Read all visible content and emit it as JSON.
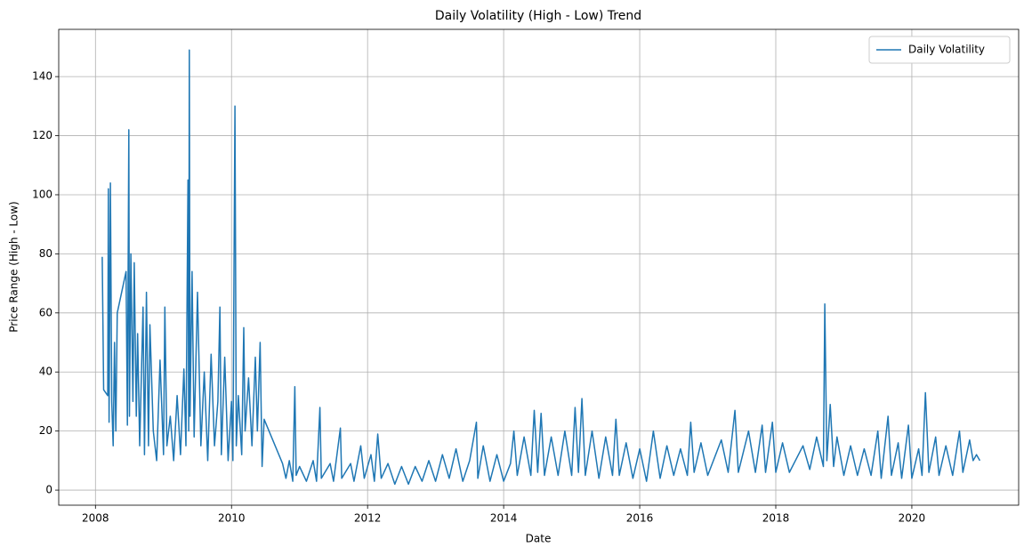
{
  "chart_data": {
    "type": "line",
    "title": "Daily Volatility (High - Low) Trend",
    "xlabel": "Date",
    "ylabel": "Price Range (High - Low)",
    "x": [
      2008.1,
      2008.12,
      2008.18,
      2008.19,
      2008.2,
      2008.22,
      2008.24,
      2008.26,
      2008.28,
      2008.3,
      2008.32,
      2008.45,
      2008.47,
      2008.49,
      2008.5,
      2008.52,
      2008.55,
      2008.57,
      2008.6,
      2008.62,
      2008.65,
      2008.7,
      2008.72,
      2008.75,
      2008.78,
      2008.8,
      2008.85,
      2008.9,
      2008.95,
      2009.0,
      2009.02,
      2009.05,
      2009.1,
      2009.15,
      2009.2,
      2009.25,
      2009.3,
      2009.33,
      2009.36,
      2009.37,
      2009.38,
      2009.39,
      2009.42,
      2009.45,
      2009.5,
      2009.55,
      2009.6,
      2009.65,
      2009.7,
      2009.75,
      2009.8,
      2009.83,
      2009.85,
      2009.9,
      2009.95,
      2010.0,
      2010.02,
      2010.05,
      2010.07,
      2010.1,
      2010.15,
      2010.18,
      2010.2,
      2010.25,
      2010.3,
      2010.35,
      2010.38,
      2010.42,
      2010.45,
      2010.48,
      2010.75,
      2010.8,
      2010.85,
      2010.9,
      2010.93,
      2010.95,
      2011.0,
      2011.1,
      2011.2,
      2011.25,
      2011.3,
      2011.32,
      2011.45,
      2011.5,
      2011.6,
      2011.62,
      2011.75,
      2011.8,
      2011.9,
      2011.95,
      2012.05,
      2012.1,
      2012.15,
      2012.2,
      2012.3,
      2012.4,
      2012.5,
      2012.6,
      2012.7,
      2012.8,
      2012.9,
      2013.0,
      2013.1,
      2013.2,
      2013.3,
      2013.4,
      2013.5,
      2013.6,
      2013.62,
      2013.7,
      2013.8,
      2013.9,
      2014.0,
      2014.1,
      2014.15,
      2014.2,
      2014.3,
      2014.4,
      2014.45,
      2014.5,
      2014.55,
      2014.6,
      2014.7,
      2014.8,
      2014.9,
      2015.0,
      2015.05,
      2015.1,
      2015.15,
      2015.2,
      2015.3,
      2015.4,
      2015.5,
      2015.6,
      2015.65,
      2015.7,
      2015.8,
      2015.9,
      2016.0,
      2016.1,
      2016.2,
      2016.3,
      2016.4,
      2016.5,
      2016.6,
      2016.7,
      2016.75,
      2016.8,
      2016.9,
      2017.0,
      2017.2,
      2017.3,
      2017.4,
      2017.45,
      2017.6,
      2017.7,
      2017.8,
      2017.85,
      2017.95,
      2018.0,
      2018.1,
      2018.2,
      2018.4,
      2018.5,
      2018.6,
      2018.7,
      2018.72,
      2018.75,
      2018.8,
      2018.85,
      2018.9,
      2019.0,
      2019.1,
      2019.2,
      2019.3,
      2019.4,
      2019.5,
      2019.55,
      2019.65,
      2019.7,
      2019.8,
      2019.85,
      2019.95,
      2020.0,
      2020.1,
      2020.15,
      2020.2,
      2020.25,
      2020.35,
      2020.4,
      2020.5,
      2020.6,
      2020.7,
      2020.75,
      2020.85,
      2020.9,
      2020.95,
      2021.0
    ],
    "series": [
      {
        "name": "Daily Volatility",
        "color": "#1f77b4",
        "values": [
          79,
          34,
          32,
          102,
          23,
          104,
          30,
          15,
          50,
          20,
          60,
          74,
          22,
          122,
          25,
          80,
          30,
          77,
          25,
          53,
          15,
          62,
          12,
          67,
          15,
          56,
          20,
          10,
          44,
          12,
          62,
          15,
          25,
          10,
          32,
          12,
          41,
          15,
          105,
          20,
          149,
          25,
          74,
          18,
          67,
          15,
          40,
          10,
          46,
          15,
          30,
          62,
          12,
          45,
          10,
          30,
          10,
          130,
          15,
          32,
          12,
          55,
          20,
          38,
          15,
          45,
          20,
          50,
          8,
          24,
          9,
          4,
          10,
          3,
          35,
          5,
          8,
          3,
          10,
          3,
          28,
          4,
          9,
          3,
          21,
          4,
          9,
          3,
          15,
          4,
          12,
          3,
          19,
          4,
          9,
          2,
          8,
          2,
          8,
          3,
          10,
          3,
          12,
          4,
          14,
          3,
          10,
          23,
          4,
          15,
          3,
          12,
          3,
          9,
          20,
          5,
          18,
          5,
          27,
          6,
          26,
          5,
          18,
          5,
          20,
          5,
          28,
          6,
          31,
          5,
          20,
          4,
          18,
          5,
          24,
          5,
          16,
          4,
          14,
          3,
          20,
          4,
          15,
          5,
          14,
          5,
          23,
          6,
          16,
          5,
          17,
          6,
          27,
          6,
          20,
          6,
          22,
          6,
          23,
          6,
          16,
          6,
          15,
          7,
          18,
          8,
          63,
          10,
          29,
          8,
          18,
          5,
          15,
          5,
          14,
          5,
          20,
          4,
          25,
          5,
          16,
          4,
          22,
          4,
          14,
          5,
          33,
          6,
          18,
          5,
          15,
          5,
          20,
          6,
          17,
          10,
          12,
          10
        ]
      }
    ],
    "xlim": [
      2007.46,
      2021.57
    ],
    "xticks": [
      2008,
      2010,
      2012,
      2014,
      2016,
      2018,
      2020
    ],
    "ylim": [
      -5.1,
      156
    ],
    "yticks": [
      0,
      20,
      40,
      60,
      80,
      100,
      120,
      140
    ],
    "grid": true,
    "legend": "upper right"
  }
}
